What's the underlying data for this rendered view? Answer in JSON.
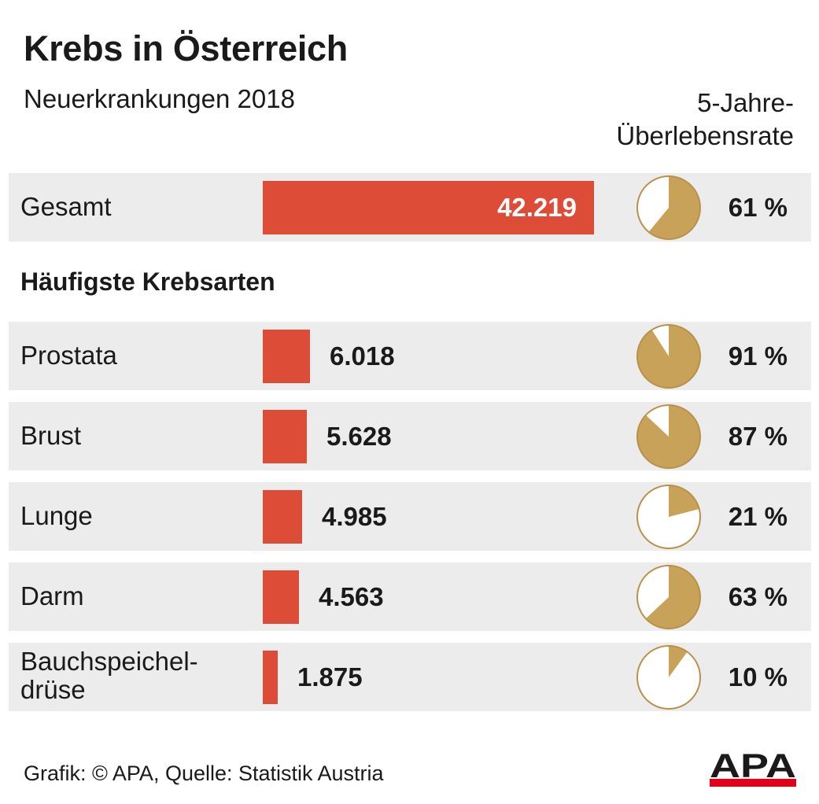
{
  "title": "Krebs in Österreich",
  "subtitle": "Neuerkrankungen 2018",
  "rate_header_line1": "5-Jahre-",
  "rate_header_line2": "Überlebensrate",
  "section_title": "Häufigste Krebsarten",
  "footer": "Grafik: © APA, Quelle: Statistik Austria",
  "logo_text": "APA",
  "colors": {
    "bar": "#dd4c36",
    "pie_fill": "#c8a258",
    "pie_outline": "#b8924a",
    "row_background": "#ececec",
    "logo_stripe": "#e3001b"
  },
  "chart_data": {
    "type": "bar",
    "orientation": "horizontal",
    "categories": [
      "Gesamt",
      "Prostata",
      "Brust",
      "Lunge",
      "Darm",
      "Bauchspeichel-drüse"
    ],
    "label_lines": [
      [
        "Gesamt"
      ],
      [
        "Prostata"
      ],
      [
        "Brust"
      ],
      [
        "Lunge"
      ],
      [
        "Darm"
      ],
      [
        "Bauchspeichel-",
        "drüse"
      ]
    ],
    "series": [
      {
        "name": "Neuerkrankungen 2018",
        "values": [
          42219,
          6018,
          5628,
          4985,
          4563,
          1875
        ],
        "labels": [
          "42.219",
          "6.018",
          "5.628",
          "4.985",
          "4.563",
          "1.875"
        ]
      },
      {
        "name": "5-Jahre-Überlebensrate",
        "type": "pie",
        "values": [
          61,
          91,
          87,
          21,
          63,
          10
        ],
        "labels": [
          "61 %",
          "91 %",
          "87 %",
          "21 %",
          "63 %",
          "10 %"
        ]
      }
    ]
  }
}
